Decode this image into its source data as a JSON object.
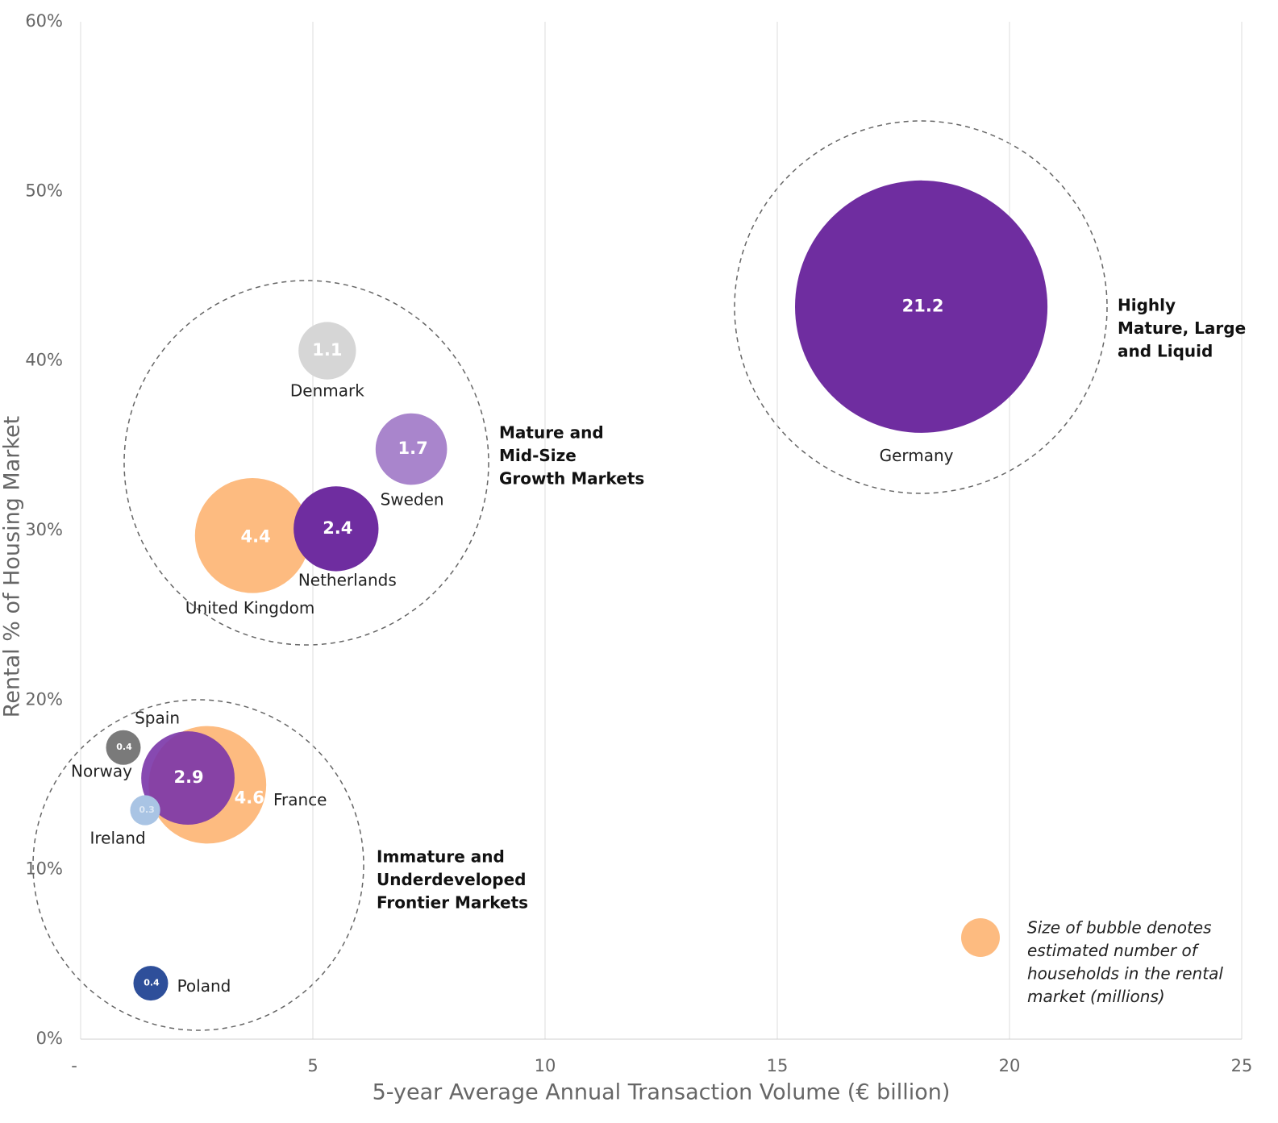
{
  "chart_data": {
    "type": "bubble",
    "x_label": "5-year Average Annual Transaction Volume (€ billion)",
    "y_label": "Rental % of Housing Market",
    "xlim": [
      0,
      25
    ],
    "xticks": [
      {
        "value": 0,
        "label": "-"
      },
      5,
      10,
      15,
      20,
      25
    ],
    "ylim": [
      0,
      60
    ],
    "yticks": [
      {
        "value": 0,
        "label": "0%"
      },
      {
        "value": 10,
        "label": "10%"
      },
      {
        "value": 20,
        "label": "20%"
      },
      {
        "value": 30,
        "label": "30%"
      },
      {
        "value": 40,
        "label": "40%"
      },
      {
        "value": 50,
        "label": "50%"
      },
      {
        "value": 60,
        "label": "60%"
      }
    ],
    "grid": true,
    "points": [
      {
        "name": "Denmark",
        "x": 5.31,
        "y": 40.6,
        "size": 1.1,
        "color": "#d6d6d6"
      },
      {
        "name": "Sweden",
        "x": 7.12,
        "y": 34.8,
        "size": 1.7,
        "color": "#a985cc"
      },
      {
        "name": "United Kingdom",
        "x": 3.7,
        "y": 29.7,
        "size": 4.4,
        "color": "#fdbb80"
      },
      {
        "name": "Netherlands",
        "x": 5.5,
        "y": 30.1,
        "size": 2.4,
        "color": "#6f2da0"
      },
      {
        "name": "Germany",
        "x": 18.1,
        "y": 43.2,
        "size": 21.2,
        "color": "#6f2da0"
      },
      {
        "name": "France",
        "x": 2.73,
        "y": 15.0,
        "size": 4.6,
        "color": "#fdbb80"
      },
      {
        "name": "Spain",
        "x": 2.31,
        "y": 15.4,
        "size": 2.9,
        "color": "#7a35a8"
      },
      {
        "name": "Norway",
        "x": 0.92,
        "y": 17.2,
        "size": 0.4,
        "color": "#7a7a7a"
      },
      {
        "name": "Ireland",
        "x": 1.39,
        "y": 13.5,
        "size": 0.3,
        "color": "#a9c4e4"
      },
      {
        "name": "Poland",
        "x": 1.51,
        "y": 3.3,
        "size": 0.4,
        "color": "#2e4f9a"
      }
    ],
    "annotations": [
      [
        "Mature and",
        "Mid-Size",
        "Growth Markets"
      ],
      [
        "Highly",
        "Mature, Large",
        "and Liquid"
      ],
      [
        "Immature and",
        "Underdeveloped",
        "Frontier Markets"
      ]
    ],
    "size_note": [
      "Size of bubble denotes",
      "estimated number of",
      "households in the rental",
      "market (millions)"
    ]
  }
}
